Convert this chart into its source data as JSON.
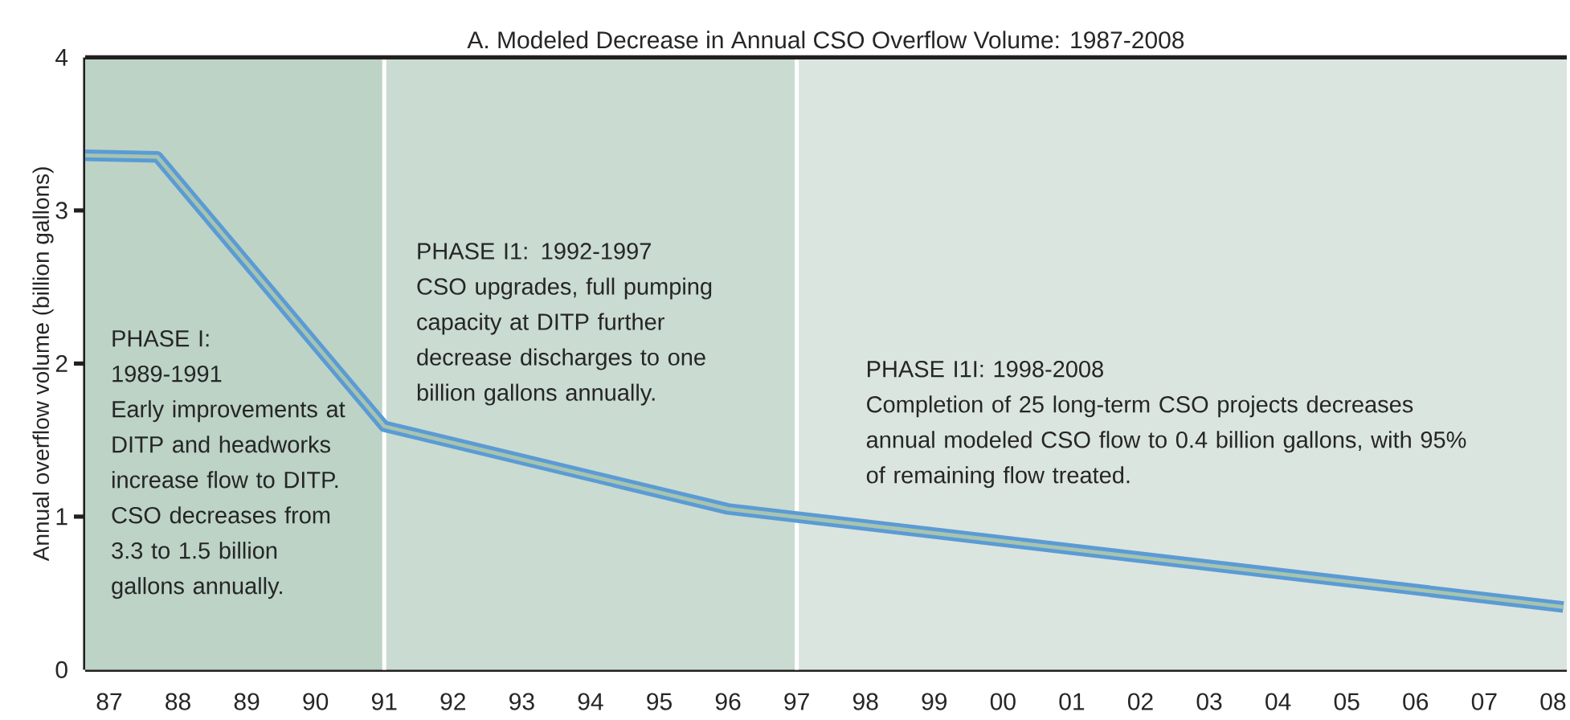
{
  "chart_data": {
    "type": "line",
    "title": "A. Modeled Decrease in Annual CSO Overflow Volume: 1987-2008",
    "ylabel": "Annual overflow volume (billion gallons)",
    "series": [
      {
        "color": "#5b9bd5",
        "x": [
          1986.65,
          1987.7,
          1991,
          1996,
          2008.15
        ],
        "values": [
          3.36,
          3.35,
          1.59,
          1.05,
          0.41
        ]
      }
    ],
    "xlim": [
      1986.65,
      2008.2
    ],
    "ylim": [
      0,
      4
    ],
    "xticks": [
      {
        "value": 1987,
        "label": "87"
      },
      {
        "value": 1988,
        "label": "88"
      },
      {
        "value": 1989,
        "label": "89"
      },
      {
        "value": 1990,
        "label": "90"
      },
      {
        "value": 1991,
        "label": "91"
      },
      {
        "value": 1992,
        "label": "92"
      },
      {
        "value": 1993,
        "label": "93"
      },
      {
        "value": 1994,
        "label": "94"
      },
      {
        "value": 1995,
        "label": "95"
      },
      {
        "value": 1996,
        "label": "96"
      },
      {
        "value": 1997,
        "label": "97"
      },
      {
        "value": 1998,
        "label": "98"
      },
      {
        "value": 1999,
        "label": "99"
      },
      {
        "value": 2000,
        "label": "00"
      },
      {
        "value": 2001,
        "label": "01"
      },
      {
        "value": 2002,
        "label": "02"
      },
      {
        "value": 2003,
        "label": "03"
      },
      {
        "value": 2004,
        "label": "04"
      },
      {
        "value": 2005,
        "label": "05"
      },
      {
        "value": 2006,
        "label": "06"
      },
      {
        "value": 2007,
        "label": "07"
      },
      {
        "value": 2008,
        "label": "08"
      }
    ],
    "yticks": [
      0,
      1,
      2,
      3,
      4
    ],
    "bands": [
      {
        "axis": "x",
        "from": 1986.65,
        "to": 1991,
        "color": "#bcd3c6"
      },
      {
        "axis": "x",
        "from": 1991,
        "to": 1997,
        "color": "#cadbd1"
      },
      {
        "axis": "x",
        "from": 1997,
        "to": 2008.2,
        "color": "#dae5df"
      }
    ],
    "ref_lines": [
      {
        "axis": "x",
        "value": 1991,
        "color": "#ffffff"
      },
      {
        "axis": "x",
        "value": 1997,
        "color": "#ffffff"
      }
    ],
    "annotations": [
      "PHASE I:",
      "1989-1991",
      "Early improvements at DITP and headworks increase flow to DITP. CSO decreases from 3.3 to 1.5 billion gallons annually.",
      "PHASE I1: 1992-1997",
      "CSO upgrades, full pumping capacity at DITP further decrease discharges to one billion gallons annually.",
      "PHASE I1I: 1998-2008",
      "Completion of 25 long-term CSO projects decreases annual modeled CSO flow to 0.4 billion gallons, with 95% of remaining flow treated."
    ]
  }
}
